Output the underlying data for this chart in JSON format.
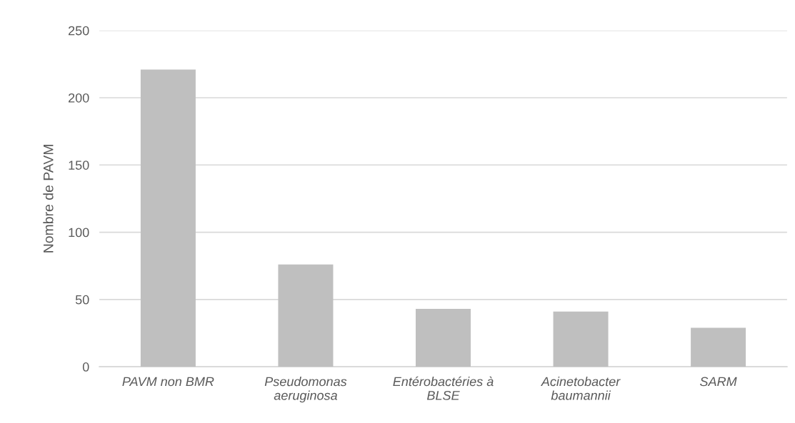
{
  "chart_data": {
    "type": "bar",
    "ylabel": "Nombre de PAVM",
    "categories": [
      "PAVM non BMR",
      "Pseudomonas\naeruginosa",
      "Entérobactéries à\nBLSE",
      "Acinetobacter\nbaumannii",
      "SARM"
    ],
    "values": [
      221,
      76,
      43,
      41,
      29
    ],
    "color": "#bfbfbf",
    "ylim": [
      0,
      250
    ],
    "yticks": [
      0,
      50,
      100,
      150,
      200,
      250
    ],
    "grid": "y"
  }
}
